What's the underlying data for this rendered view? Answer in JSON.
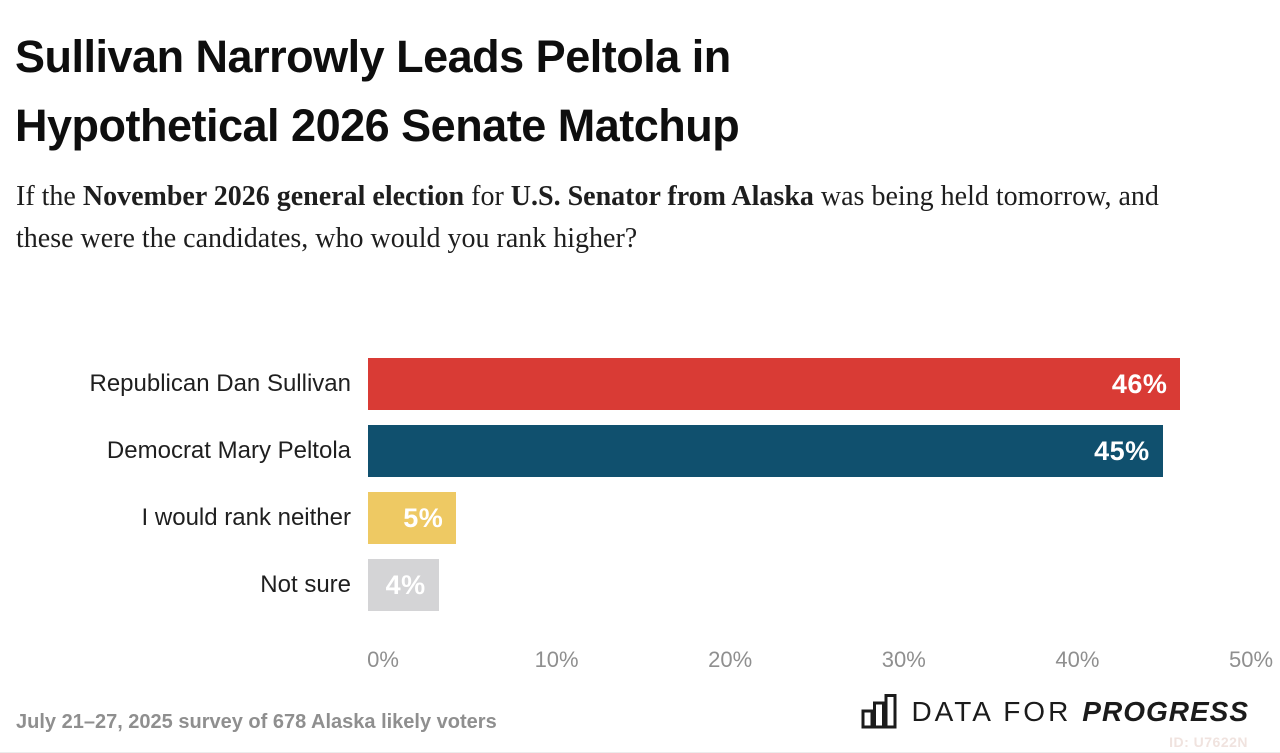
{
  "header": {
    "title": "Sullivan Narrowly Leads Peltola in\nHypothetical 2026 Senate Matchup",
    "question_segments": [
      {
        "text": "If the ",
        "bold": false
      },
      {
        "text": "November 2026 general election",
        "bold": true
      },
      {
        "text": " for ",
        "bold": false
      },
      {
        "text": "U.S. Senator from Alaska",
        "bold": true
      },
      {
        "text": " was being held tomorrow, and these were the candidates, who would you rank higher?",
        "bold": false
      }
    ]
  },
  "chart_data": {
    "type": "bar",
    "orientation": "horizontal",
    "title": "Sullivan Narrowly Leads Peltola in Hypothetical 2026 Senate Matchup",
    "subtitle": "If the November 2026 general election for U.S. Senator from Alaska was being held tomorrow, and these were the candidates, who would you rank higher?",
    "categories": [
      "Republican Dan Sullivan",
      "Democrat Mary Peltola",
      "I would rank neither",
      "Not sure"
    ],
    "values": [
      46,
      45,
      5,
      4
    ],
    "value_labels": [
      "46%",
      "45%",
      "5%",
      "4%"
    ],
    "bar_colors": [
      "#d93b35",
      "#10506e",
      "#eec963",
      "#d4d4d6"
    ],
    "value_label_color": "#ffffff",
    "xlim": [
      0,
      50
    ],
    "x_ticks": [
      0,
      10,
      20,
      30,
      40,
      50
    ],
    "x_tick_labels": [
      "0%",
      "10%",
      "20%",
      "30%",
      "40%",
      "50%"
    ],
    "grid": false,
    "legend": false
  },
  "footer": {
    "source": "July 21–27, 2025 survey of 678 Alaska likely voters",
    "logo_prefix": "DATA FOR",
    "logo_suffix": "PROGRESS",
    "watermark": "ID: U7622N"
  }
}
